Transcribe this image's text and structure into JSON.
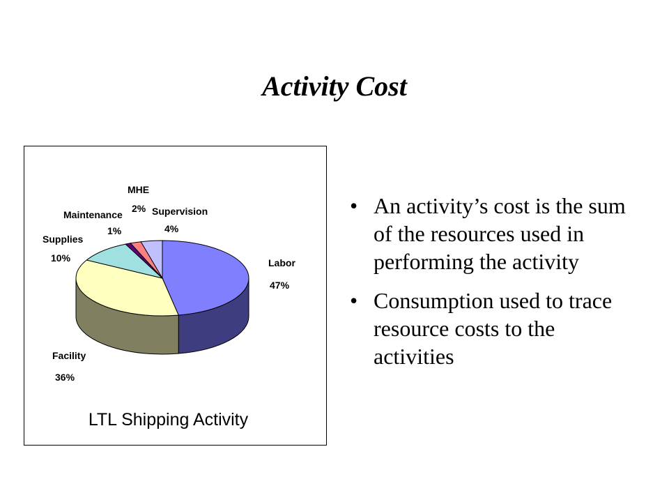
{
  "slide": {
    "title": "Activity Cost"
  },
  "bullets": [
    "An activity’s cost is the sum of the resources used in performing the activity",
    "Consumption used to trace resource costs to the activities"
  ],
  "chart_data": {
    "type": "pie",
    "title": "LTL Shipping Activity",
    "three_d": true,
    "slices": [
      {
        "label": "Labor",
        "value": 47,
        "pct_label": "47%",
        "color": "#8080ff",
        "side_color": "#3d3d80"
      },
      {
        "label": "Facility",
        "value": 36,
        "pct_label": "36%",
        "color": "#ffffc0",
        "side_color": "#808060"
      },
      {
        "label": "Supplies",
        "value": 10,
        "pct_label": "10%",
        "color": "#a0e0e0",
        "side_color": "#508080"
      },
      {
        "label": "Maintenance",
        "value": 1,
        "pct_label": "1%",
        "color": "#600080",
        "side_color": "#300040"
      },
      {
        "label": "MHE",
        "value": 2,
        "pct_label": "2%",
        "color": "#ff8080",
        "side_color": "#804040"
      },
      {
        "label": "Supervision",
        "value": 4,
        "pct_label": "4%",
        "color": "#c0c0ff",
        "side_color": "#606080"
      }
    ]
  }
}
